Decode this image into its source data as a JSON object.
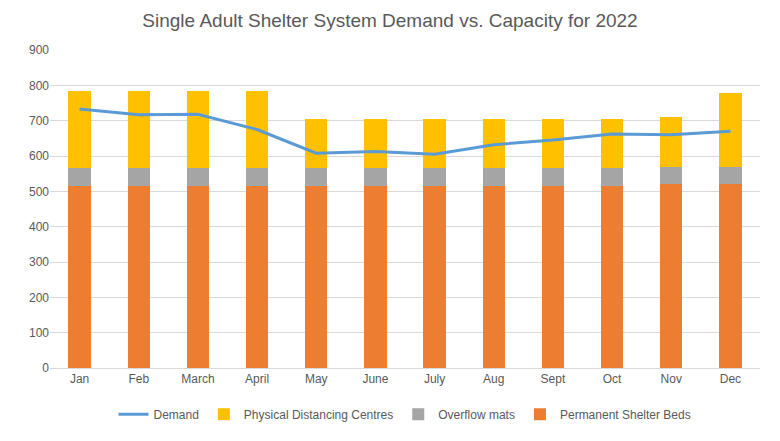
{
  "chart_data": {
    "type": "bar",
    "title": "Single Adult Shelter System Demand vs. Capacity for 2022",
    "categories": [
      "Jan",
      "Feb",
      "March",
      "April",
      "May",
      "June",
      "July",
      "Aug",
      "Sept",
      "Oct",
      "Nov",
      "Dec"
    ],
    "stacked": true,
    "grid": true,
    "legend": "bottom",
    "ylim": [
      0,
      900
    ],
    "yticks": [
      0,
      100,
      200,
      300,
      400,
      500,
      600,
      700,
      800,
      900
    ],
    "series": [
      {
        "name": "Permanent Shelter Beds",
        "type": "bar",
        "color": "#ed7d31",
        "values": [
          515,
          515,
          515,
          515,
          515,
          515,
          515,
          515,
          515,
          515,
          520,
          520
        ]
      },
      {
        "name": "Overflow mats",
        "type": "bar",
        "color": "#a5a5a5",
        "values": [
          50,
          50,
          50,
          50,
          50,
          50,
          50,
          50,
          50,
          50,
          50,
          50
        ]
      },
      {
        "name": "Physical Distancing Centres",
        "type": "bar",
        "color": "#ffc000",
        "values": [
          220,
          220,
          220,
          220,
          140,
          140,
          140,
          140,
          140,
          140,
          140,
          208
        ]
      },
      {
        "name": "Demand",
        "type": "line",
        "color": "#5b9bd5",
        "values": [
          733,
          717,
          718,
          675,
          608,
          613,
          605,
          632,
          645,
          662,
          660,
          670
        ]
      }
    ]
  }
}
